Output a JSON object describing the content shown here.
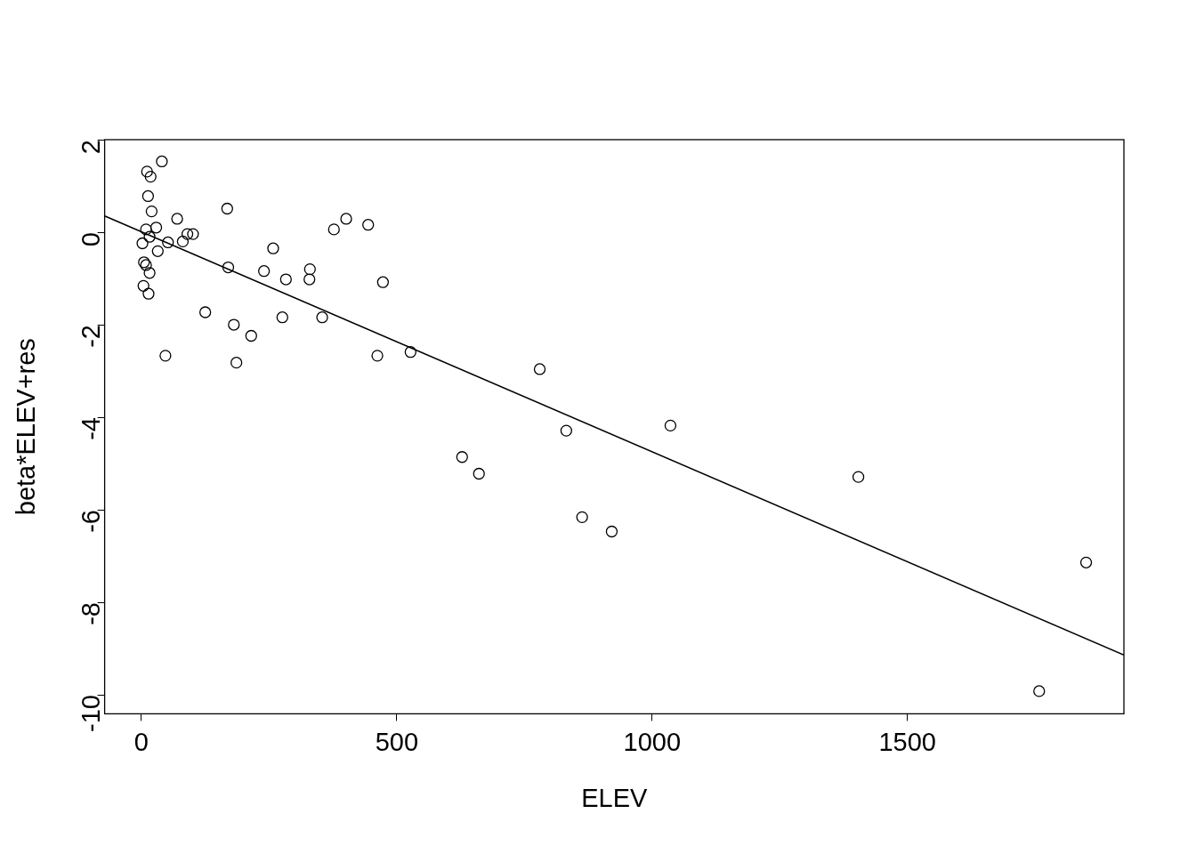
{
  "chart_data": {
    "type": "scatter",
    "x_label": "ELEV",
    "y_label": "beta*ELEV+res",
    "xlim": [
      -72,
      1924
    ],
    "ylim": [
      -10.41,
      2.0
    ],
    "xticks": [
      0,
      500,
      1000,
      1500
    ],
    "yticks": [
      -10,
      -8,
      -6,
      -4,
      -2,
      0,
      2
    ],
    "grid": false,
    "series": [
      {
        "type": "scatter",
        "marker": "circle",
        "color": "#000000",
        "x": [
          2,
          11,
          40,
          18,
          13,
          20,
          9,
          29,
          16,
          5,
          9,
          16,
          4,
          14,
          32,
          52,
          70,
          81,
          90,
          101,
          47,
          125,
          168,
          170,
          181,
          186,
          215,
          240,
          258,
          276,
          283,
          329,
          330,
          354,
          377,
          401,
          444,
          473,
          462,
          527,
          628,
          661,
          780,
          832,
          863,
          921,
          1036,
          1404,
          1758,
          1850
        ],
        "y": [
          -0.24,
          1.31,
          1.53,
          1.2,
          0.78,
          0.45,
          0.06,
          0.1,
          -0.1,
          -0.65,
          -0.71,
          -0.88,
          -1.16,
          -1.33,
          -0.41,
          -0.22,
          0.29,
          -0.2,
          -0.04,
          -0.04,
          -2.67,
          -1.73,
          0.51,
          -0.76,
          -2.0,
          -2.82,
          -2.24,
          -0.84,
          -0.35,
          -1.84,
          -1.02,
          -1.02,
          -0.8,
          -1.84,
          0.06,
          0.29,
          0.16,
          -1.08,
          -2.67,
          -2.59,
          -4.86,
          -5.22,
          -2.96,
          -4.29,
          -6.16,
          -6.47,
          -4.18,
          -5.29,
          -9.92,
          -7.14
        ]
      },
      {
        "type": "line",
        "line_style": "solid",
        "color": "#000000",
        "x": [
          -72,
          1924
        ],
        "y": [
          0.35,
          -9.14
        ]
      }
    ]
  }
}
